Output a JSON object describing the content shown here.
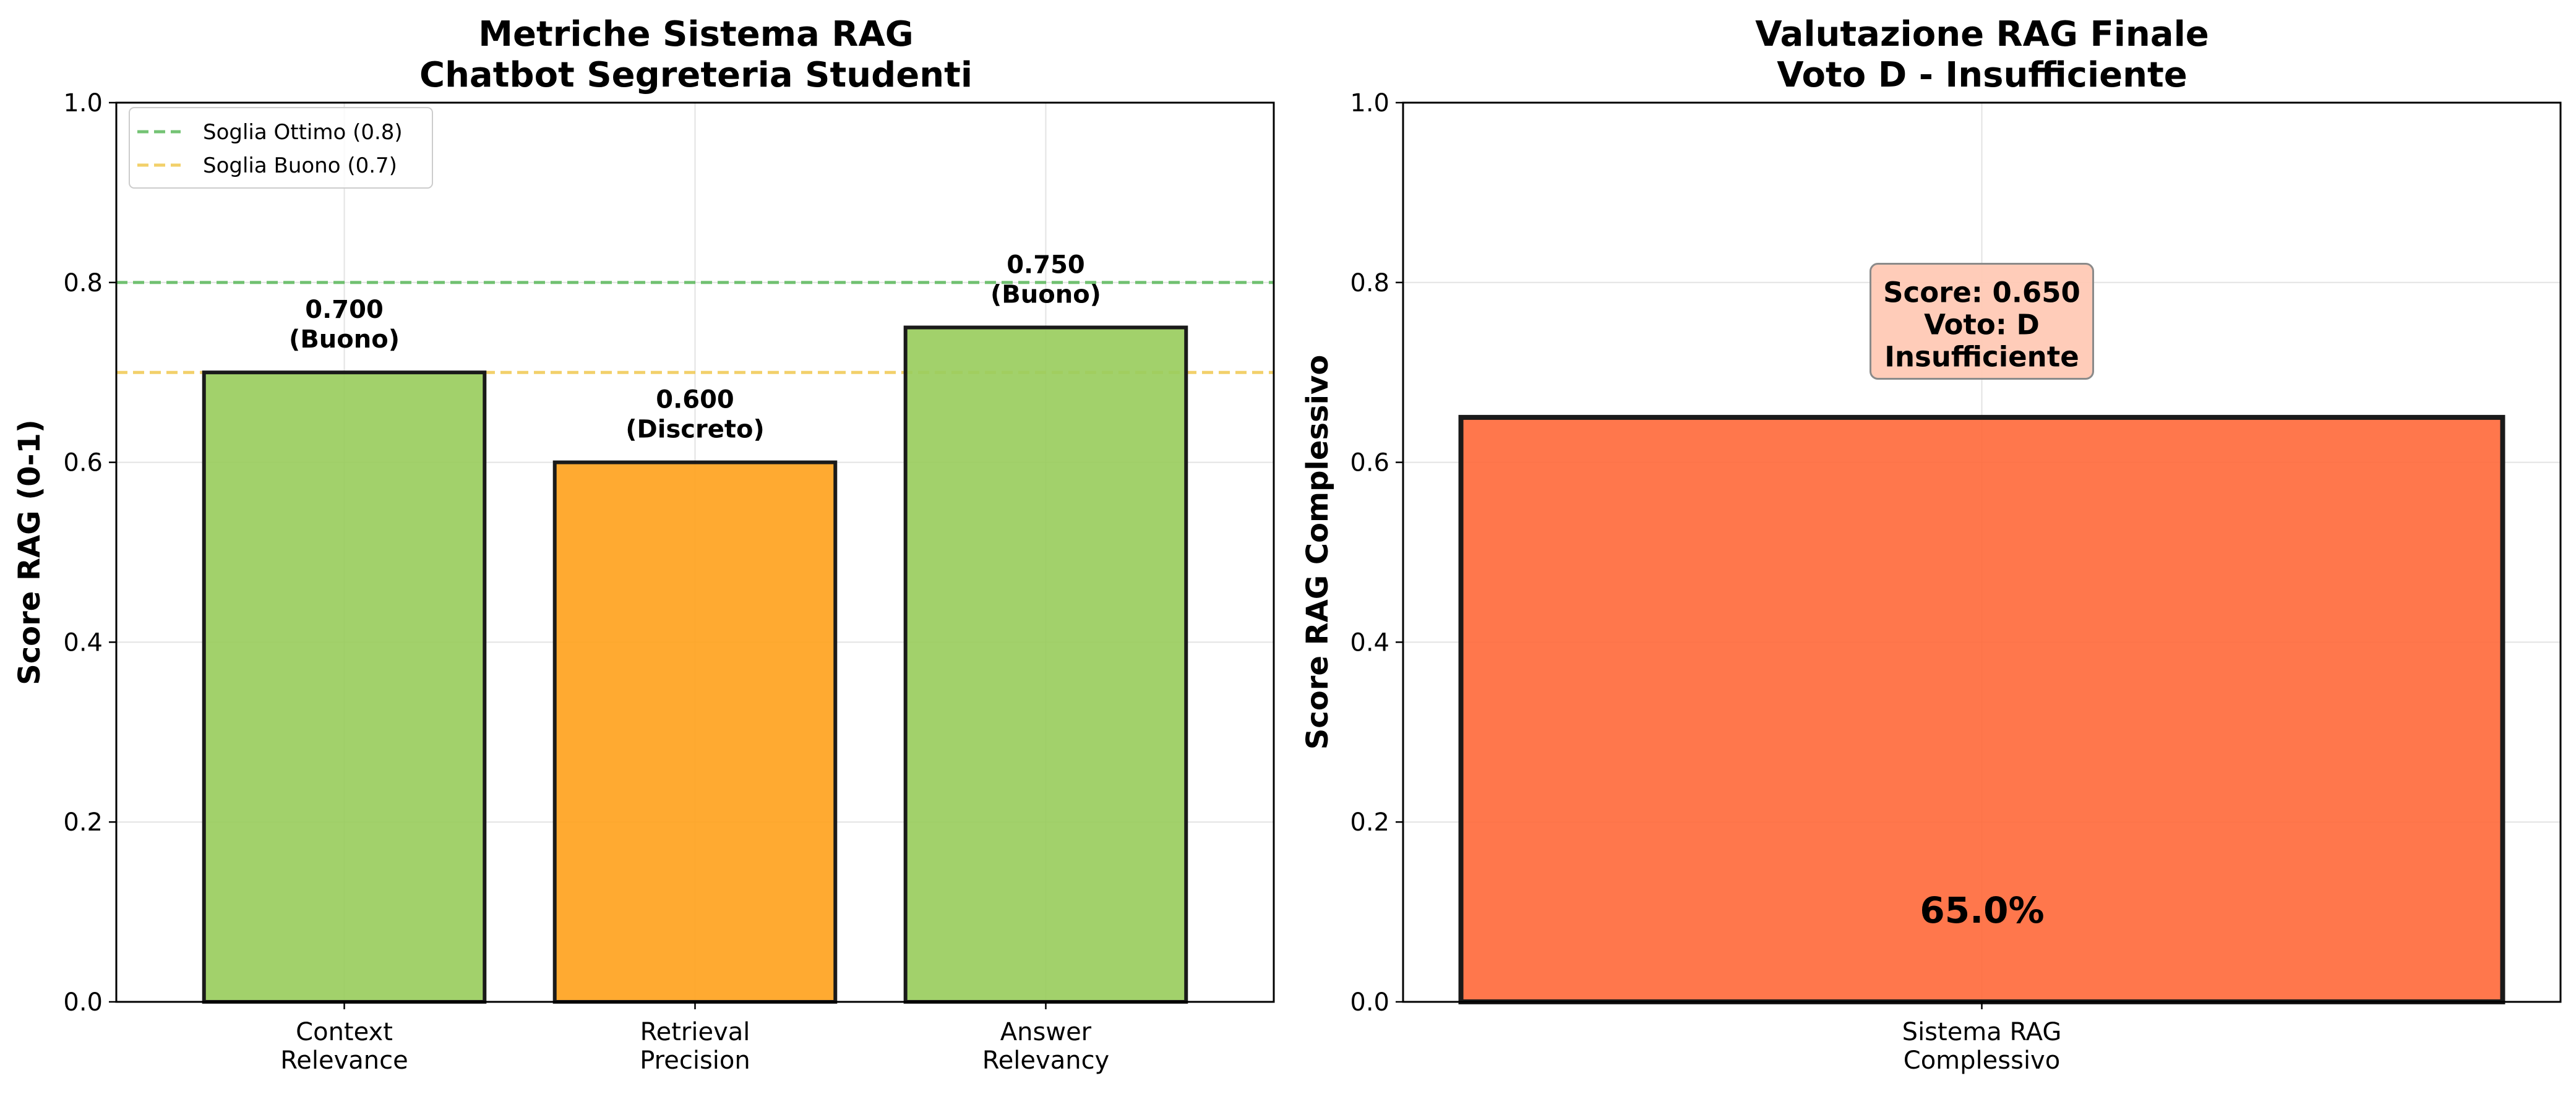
{
  "chart_data": [
    {
      "type": "bar",
      "title": [
        "Metriche Sistema RAG",
        "Chatbot Segreteria Studenti"
      ],
      "ylabel": "Score RAG (0-1)",
      "xlabel": "",
      "ylim": [
        0,
        1.0
      ],
      "yticks": [
        "0.0",
        "0.2",
        "0.4",
        "0.6",
        "0.8",
        "1.0"
      ],
      "grid": true,
      "legend_position": "top-left",
      "categories": [
        [
          "Context",
          "Relevance"
        ],
        [
          "Retrieval",
          "Precision"
        ],
        [
          "Answer",
          "Relevancy"
        ]
      ],
      "values": [
        0.7,
        0.6,
        0.75
      ],
      "value_labels": [
        "0.700",
        "0.600",
        "0.750"
      ],
      "quality_labels": [
        "(Buono)",
        "(Discreto)",
        "(Buono)"
      ],
      "bar_colors": [
        "#9acd5e",
        "#ffa31f",
        "#9acd5e"
      ],
      "thresholds": [
        {
          "label": "Soglia Ottimo (0.8)",
          "value": 0.8,
          "color": "#5cb85c"
        },
        {
          "label": "Soglia Buono (0.7)",
          "value": 0.7,
          "color": "#f0c850"
        }
      ]
    },
    {
      "type": "bar",
      "title": [
        "Valutazione RAG Finale",
        "Voto D - Insufficiente"
      ],
      "ylabel": "Score RAG Complessivo",
      "xlabel": "",
      "ylim": [
        0,
        1.0
      ],
      "yticks": [
        "0.0",
        "0.2",
        "0.4",
        "0.6",
        "0.8",
        "1.0"
      ],
      "grid": true,
      "categories": [
        [
          "Sistema RAG",
          "Complessivo"
        ]
      ],
      "values": [
        0.65
      ],
      "bar_colors": [
        "#ff6b3d"
      ],
      "percent_label": "65.0%",
      "annotation": {
        "lines": [
          "Score: 0.650",
          "Voto: D",
          "Insufficiente"
        ],
        "value": 0.75,
        "color": "#ffc9b5"
      }
    }
  ]
}
